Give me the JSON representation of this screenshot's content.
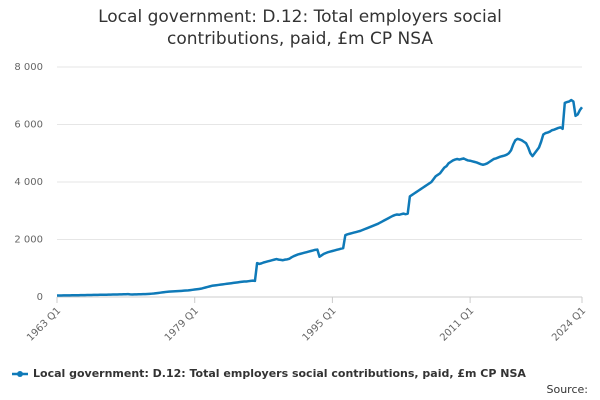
{
  "chart_data": {
    "type": "line",
    "title": "Local government: D.12: Total employers social contributions, paid, £m CP NSA",
    "source_label": "Source:",
    "categories": [
      "1963 Q1",
      null,
      null,
      null,
      null,
      null,
      null,
      null,
      null,
      null,
      null,
      null,
      null,
      null,
      null,
      null,
      null,
      null,
      null,
      null,
      null,
      null,
      null,
      null,
      null,
      null,
      null,
      null,
      null,
      null,
      null,
      null,
      null,
      null,
      null,
      null,
      null,
      null,
      null,
      null,
      null,
      null,
      null,
      null,
      null,
      null,
      null,
      null,
      null,
      null,
      null,
      null,
      null,
      null,
      null,
      null,
      null,
      null,
      null,
      null,
      null,
      null,
      null,
      null,
      "1979 Q1",
      null,
      null,
      null,
      null,
      null,
      null,
      null,
      null,
      null,
      null,
      null,
      null,
      null,
      null,
      null,
      null,
      null,
      null,
      null,
      null,
      null,
      null,
      null,
      null,
      null,
      null,
      null,
      null,
      null,
      null,
      null,
      null,
      null,
      null,
      null,
      null,
      null,
      null,
      null,
      null,
      null,
      null,
      null,
      null,
      null,
      null,
      null,
      null,
      null,
      null,
      null,
      null,
      null,
      null,
      null,
      null,
      null,
      null,
      null,
      null,
      null,
      null,
      null,
      "1995 Q1",
      null,
      null,
      null,
      null,
      null,
      null,
      null,
      null,
      null,
      null,
      null,
      null,
      null,
      null,
      null,
      null,
      null,
      null,
      null,
      null,
      null,
      null,
      null,
      null,
      null,
      null,
      null,
      null,
      null,
      null,
      null,
      null,
      null,
      null,
      null,
      null,
      null,
      null,
      null,
      null,
      null,
      null,
      null,
      null,
      null,
      null,
      null,
      null,
      null,
      null,
      null,
      null,
      null,
      null,
      null,
      null,
      null,
      null,
      null,
      null,
      null,
      null,
      null,
      "2011 Q1",
      null,
      null,
      null,
      null,
      null,
      null,
      null,
      null,
      null,
      null,
      null,
      null,
      null,
      null,
      null,
      null,
      null,
      null,
      null,
      null,
      null,
      null,
      null,
      null,
      null,
      null,
      null,
      null,
      null,
      null,
      null,
      null,
      null,
      null,
      null,
      null,
      null,
      null,
      null,
      null,
      null,
      null,
      null,
      null,
      null,
      null,
      null,
      null,
      null,
      null,
      null,
      "2024 Q1"
    ],
    "series": [
      {
        "name": "Local government: D.12: Total employers social contributions, paid, £m CP NSA",
        "color": "#0f7ab8",
        "values": [
          50,
          52,
          53,
          55,
          56,
          57,
          58,
          60,
          61,
          62,
          63,
          65,
          66,
          67,
          68,
          70,
          71,
          72,
          74,
          75,
          76,
          78,
          79,
          80,
          82,
          83,
          85,
          86,
          88,
          90,
          92,
          95,
          97,
          100,
          90,
          88,
          90,
          92,
          94,
          96,
          98,
          100,
          105,
          110,
          115,
          120,
          130,
          140,
          150,
          160,
          170,
          180,
          185,
          190,
          195,
          200,
          205,
          210,
          215,
          220,
          225,
          230,
          240,
          250,
          260,
          270,
          280,
          290,
          310,
          330,
          350,
          370,
          390,
          400,
          410,
          420,
          430,
          440,
          450,
          460,
          470,
          480,
          490,
          500,
          510,
          520,
          530,
          540,
          540,
          550,
          560,
          570,
          560,
          1180,
          1150,
          1170,
          1200,
          1220,
          1240,
          1260,
          1280,
          1300,
          1320,
          1300,
          1290,
          1280,
          1300,
          1310,
          1330,
          1380,
          1420,
          1450,
          1480,
          1500,
          1520,
          1540,
          1560,
          1580,
          1600,
          1620,
          1640,
          1650,
          1400,
          1450,
          1500,
          1530,
          1560,
          1580,
          1600,
          1620,
          1640,
          1660,
          1680,
          1700,
          2150,
          2180,
          2200,
          2220,
          2240,
          2260,
          2280,
          2300,
          2330,
          2360,
          2390,
          2420,
          2450,
          2480,
          2510,
          2540,
          2580,
          2620,
          2660,
          2700,
          2740,
          2780,
          2820,
          2850,
          2870,
          2860,
          2880,
          2900,
          2880,
          2900,
          3500,
          3550,
          3600,
          3650,
          3700,
          3750,
          3800,
          3850,
          3900,
          3950,
          4000,
          4100,
          4200,
          4250,
          4300,
          4400,
          4500,
          4550,
          4650,
          4700,
          4750,
          4780,
          4800,
          4780,
          4800,
          4820,
          4780,
          4750,
          4740,
          4720,
          4700,
          4680,
          4650,
          4620,
          4600,
          4620,
          4650,
          4700,
          4750,
          4800,
          4820,
          4850,
          4880,
          4900,
          4920,
          4950,
          5000,
          5100,
          5300,
          5450,
          5500,
          5480,
          5450,
          5400,
          5350,
          5200,
          5000,
          4900,
          5000,
          5100,
          5200,
          5400,
          5650,
          5700,
          5720,
          5750,
          5800,
          5820,
          5850,
          5880,
          5900,
          5850,
          6750,
          6780,
          6800,
          6850,
          6800,
          6300,
          6350,
          6500,
          6600
        ]
      }
    ],
    "ylim": [
      0,
      8000
    ],
    "yticks": [
      0,
      {
        "value": 2000,
        "label": "2 000"
      },
      {
        "value": 4000,
        "label": "4 000"
      },
      {
        "value": 6000,
        "label": "6 000"
      },
      {
        "value": 8000,
        "label": "8 000"
      }
    ],
    "grid": true
  }
}
